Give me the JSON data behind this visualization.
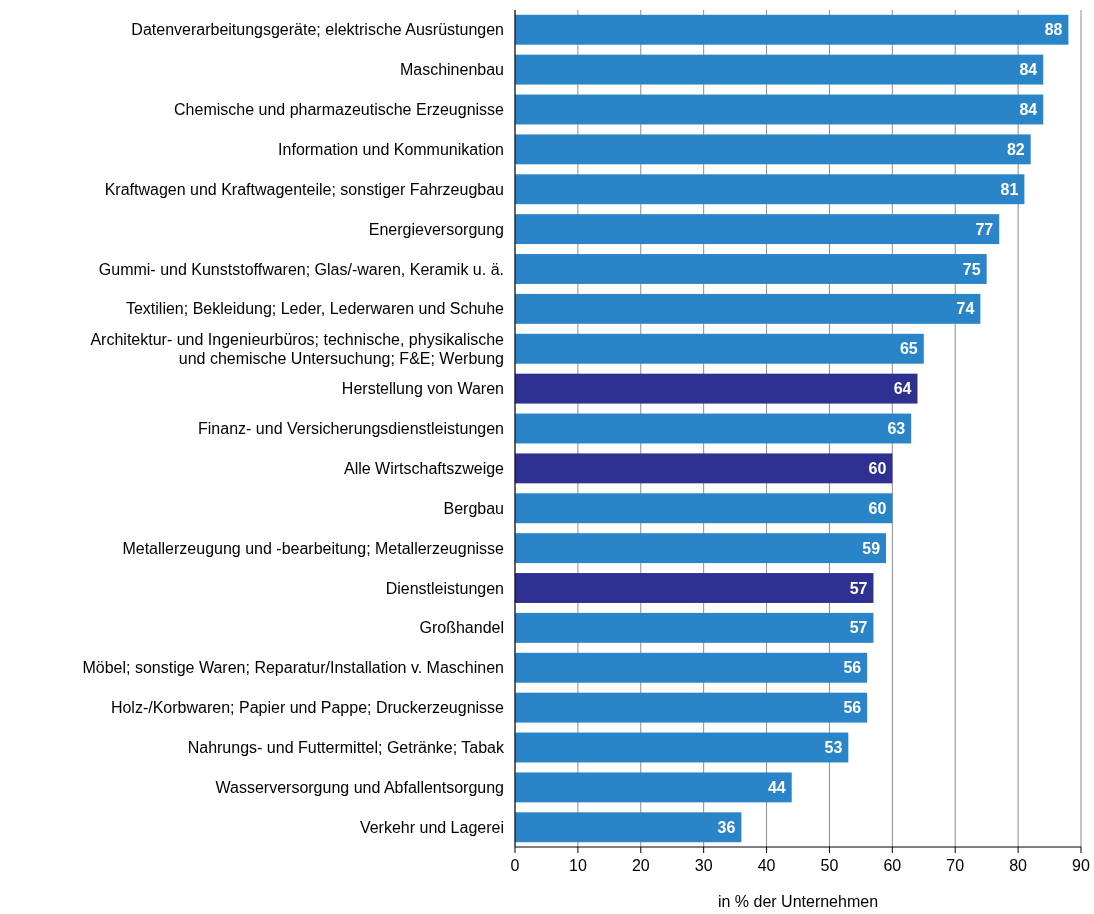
{
  "chart_data": {
    "type": "bar",
    "orientation": "horizontal",
    "xlabel": "in % der Unternehmen",
    "categories": [
      "Datenverarbeitungsgeräte; elektrische Ausrüstungen",
      "Maschinenbau",
      "Chemische und pharmazeutische Erzeugnisse",
      "Information und Kommunikation",
      "Kraftwagen und Kraftwagenteile; sonstiger Fahrzeugbau",
      "Energieversorgung",
      "Gummi- und Kunststoffwaren; Glas/-waren, Keramik u. ä.",
      "Textilien; Bekleidung; Leder, Lederwaren und Schuhe",
      "Architektur- und Ingenieurbüros; technische, physikalische\nund chemische Untersuchung; F&E; Werbung",
      "Herstellung von Waren",
      "Finanz- und Versicherungsdienstleistungen",
      "Alle Wirtschaftszweige",
      "Bergbau",
      "Metallerzeugung und -bearbeitung; Metallerzeugnisse",
      "Dienstleistungen",
      "Großhandel",
      "Möbel; sonstige Waren; Reparatur/Installation v. Maschinen",
      "Holz-/Korbwaren; Papier und Pappe; Druckerzeugnisse",
      "Nahrungs- und Futtermittel; Getränke; Tabak",
      "Wasserversorgung und Abfallentsorgung",
      "Verkehr und Lagerei"
    ],
    "values": [
      88,
      84,
      84,
      82,
      81,
      77,
      75,
      74,
      65,
      64,
      63,
      60,
      60,
      59,
      57,
      57,
      56,
      56,
      53,
      44,
      36
    ],
    "colors": [
      "#2a84c8",
      "#2a84c8",
      "#2a84c8",
      "#2a84c8",
      "#2a84c8",
      "#2a84c8",
      "#2a84c8",
      "#2a84c8",
      "#2a84c8",
      "#2e3192",
      "#2a84c8",
      "#2e3192",
      "#2a84c8",
      "#2a84c8",
      "#2e3192",
      "#2a84c8",
      "#2a84c8",
      "#2a84c8",
      "#2a84c8",
      "#2a84c8",
      "#2a84c8"
    ],
    "xlim": [
      0,
      90
    ],
    "xticks": [
      0,
      10,
      20,
      30,
      40,
      50,
      60,
      70,
      80,
      90
    ],
    "grid": "x",
    "data_labels": true
  }
}
